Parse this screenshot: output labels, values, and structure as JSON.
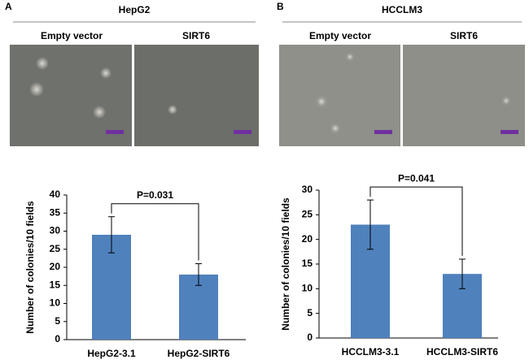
{
  "panels": [
    {
      "label": "A",
      "title": "HepG2",
      "columns": [
        "Empty vector",
        "SIRT6"
      ]
    },
    {
      "label": "B",
      "title": "HCCLM3",
      "columns": [
        "Empty vector",
        "SIRT6"
      ]
    }
  ],
  "chart_data": [
    {
      "type": "bar",
      "categories": [
        "HepG2-3.1",
        "HepG2-SIRT6"
      ],
      "values": [
        29,
        18
      ],
      "errors": [
        5,
        3
      ],
      "color": "#4f81bd",
      "ylabel": "Number of colonies/10 fields",
      "ylim": [
        0,
        40
      ],
      "yticks": [
        0,
        5,
        10,
        15,
        20,
        25,
        30,
        35,
        40
      ],
      "annotation": "P=0.031"
    },
    {
      "type": "bar",
      "categories": [
        "HCCLM3-3.1",
        "HCCLM3-SIRT6"
      ],
      "values": [
        23,
        13
      ],
      "errors": [
        5,
        3
      ],
      "color": "#4f81bd",
      "ylabel": "Number of colonies/10 fields",
      "ylim": [
        0,
        30
      ],
      "yticks": [
        0,
        5,
        10,
        15,
        20,
        25,
        30
      ],
      "annotation": "P=0.041"
    }
  ]
}
